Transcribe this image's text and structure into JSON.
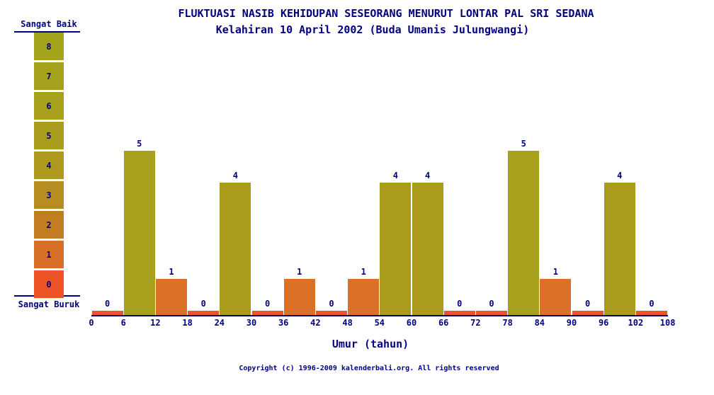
{
  "footer": {
    "copyright": "Copyright (c) 1996-2009 kalenderbali.org. All rights reserved"
  },
  "chart_data": {
    "type": "bar",
    "title": "FLUKTUASI NASIB KEHIDUPAN SESEORANG MENURUT LONTAR PAL SRI SEDANA",
    "subtitle": "Kelahiran 10 April 2002 (Buda Umanis Julungwangi)",
    "xlabel": "Umur (tahun)",
    "x_ticks": [
      0,
      6,
      12,
      18,
      24,
      30,
      36,
      42,
      48,
      54,
      60,
      66,
      72,
      78,
      84,
      90,
      96,
      102,
      108
    ],
    "intervals": [
      [
        0,
        6
      ],
      [
        6,
        12
      ],
      [
        12,
        18
      ],
      [
        18,
        24
      ],
      [
        24,
        30
      ],
      [
        30,
        36
      ],
      [
        36,
        42
      ],
      [
        42,
        48
      ],
      [
        48,
        54
      ],
      [
        54,
        60
      ],
      [
        60,
        66
      ],
      [
        66,
        72
      ],
      [
        72,
        78
      ],
      [
        78,
        84
      ],
      [
        84,
        90
      ],
      [
        90,
        96
      ],
      [
        96,
        102
      ],
      [
        102,
        108
      ]
    ],
    "values": [
      0,
      5,
      1,
      0,
      4,
      0,
      1,
      0,
      1,
      4,
      4,
      0,
      0,
      5,
      1,
      0,
      4,
      0
    ],
    "ylim": [
      0,
      8
    ],
    "grid": false,
    "text_color": "#000080",
    "axis_color": "#000080",
    "background_color": "#ffffff",
    "value_colors": {
      "0": "#ee5227",
      "1": "#db7126",
      "4": "#aa9b1d",
      "5": "#a6a01c"
    },
    "legend": {
      "position": "left",
      "top_label": "Sangat Baik",
      "bottom_label": "Sangat Buruk",
      "scale": [
        {
          "value": 8,
          "color": "#a3a41a"
        },
        {
          "value": 7,
          "color": "#a4a21a"
        },
        {
          "value": 6,
          "color": "#a6a01b"
        },
        {
          "value": 5,
          "color": "#a89d1c"
        },
        {
          "value": 4,
          "color": "#ae991e"
        },
        {
          "value": 3,
          "color": "#b58d20"
        },
        {
          "value": 2,
          "color": "#c27d23"
        },
        {
          "value": 1,
          "color": "#d86f27"
        },
        {
          "value": 0,
          "color": "#ee5227"
        }
      ]
    }
  }
}
